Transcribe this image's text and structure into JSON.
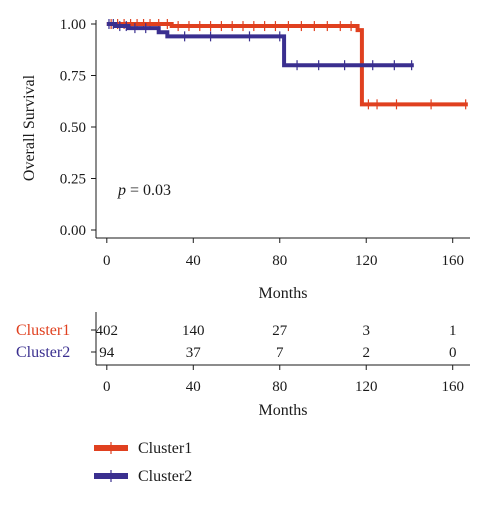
{
  "chart_data": {
    "type": "line",
    "subtype": "kaplan-meier",
    "ylabel": "Overall Survival",
    "xlabel": "Months",
    "xlim": [
      -5,
      168
    ],
    "ylim": [
      0,
      1.04
    ],
    "x_ticks": [
      0,
      40,
      80,
      120,
      160
    ],
    "x_tick_labels": [
      "0",
      "40",
      "80",
      "120",
      "160"
    ],
    "y_ticks": [
      0,
      0.25,
      0.5,
      0.75,
      1.0
    ],
    "y_tick_labels": [
      "0.00",
      "0.25",
      "0.50",
      "0.75",
      "1.00"
    ],
    "annotation": {
      "label": "p",
      "text": " = 0.03"
    },
    "series": [
      {
        "name": "Cluster1",
        "color": "#e0401f",
        "steps": [
          [
            0,
            1.0
          ],
          [
            30,
            0.99
          ],
          [
            116,
            0.97
          ],
          [
            118,
            0.61
          ],
          [
            167,
            0.61
          ]
        ],
        "censor_times": [
          2,
          5,
          8,
          11,
          14,
          17,
          20,
          24,
          28,
          33,
          38,
          43,
          48,
          53,
          58,
          63,
          68,
          73,
          78,
          84,
          90,
          96,
          102,
          108,
          113,
          121,
          125,
          134,
          150,
          166
        ]
      },
      {
        "name": "Cluster2",
        "color": "#3a2f8f",
        "steps": [
          [
            0,
            1.0
          ],
          [
            4,
            0.99
          ],
          [
            10,
            0.98
          ],
          [
            24,
            0.96
          ],
          [
            28,
            0.94
          ],
          [
            82,
            0.8
          ],
          [
            142,
            0.8
          ]
        ],
        "censor_times": [
          1,
          3,
          6,
          9,
          13,
          18,
          36,
          48,
          66,
          80,
          88,
          98,
          110,
          123,
          133,
          141
        ]
      }
    ]
  },
  "risk_table": {
    "xlabel": "Months",
    "x_ticks": [
      0,
      40,
      80,
      120,
      160
    ],
    "x_tick_labels": [
      "0",
      "40",
      "80",
      "120",
      "160"
    ],
    "rows": [
      {
        "name": "Cluster1",
        "color": "#e0401f",
        "counts": [
          "402",
          "140",
          "27",
          "3",
          "1"
        ]
      },
      {
        "name": "Cluster2",
        "color": "#3a2f8f",
        "counts": [
          "94",
          "37",
          "7",
          "2",
          "0"
        ]
      }
    ]
  },
  "legend": [
    {
      "label": "Cluster1",
      "color": "#e0401f"
    },
    {
      "label": "Cluster2",
      "color": "#3a2f8f"
    }
  ]
}
